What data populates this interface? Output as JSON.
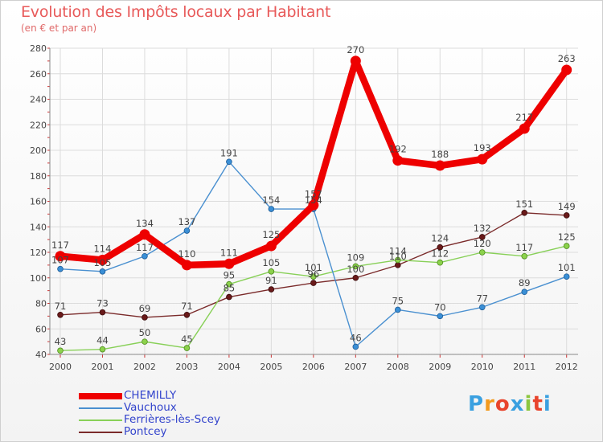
{
  "title": "Evolution des Impôts locaux par Habitant",
  "subtitle": "(en € et par an)",
  "logo": {
    "text": "Proxiti",
    "colors": [
      "#3aa0e0",
      "#f39a1e",
      "#e8442c",
      "#3aa0e0",
      "#8cc63f",
      "#e8442c",
      "#3aa0e0"
    ]
  },
  "chart_data": {
    "type": "line",
    "x": [
      "2000",
      "2001",
      "2002",
      "2003",
      "2004",
      "2005",
      "2006",
      "2007",
      "2008",
      "2009",
      "2010",
      "2011",
      "2012"
    ],
    "ylim": [
      40,
      280
    ],
    "yticks": [
      "40",
      "60",
      "80",
      "100",
      "120",
      "140",
      "160",
      "180",
      "200",
      "220",
      "240",
      "260",
      "280"
    ],
    "grid": true,
    "series": [
      {
        "name": "CHEMILLY",
        "color": "#ee0000",
        "values": [
          117,
          114,
          134,
          110,
          111,
          125,
          157,
          270,
          192,
          188,
          193,
          217,
          263
        ],
        "labels": [
          "117",
          "114",
          "134",
          "110",
          "111",
          "125",
          "157",
          "270",
          "192",
          "188",
          "193",
          "217",
          "263"
        ]
      },
      {
        "name": "Vauchoux",
        "color": "#4a90d0",
        "values": [
          107,
          105,
          117,
          137,
          191,
          154,
          154,
          46,
          75,
          70,
          77,
          89,
          101
        ],
        "labels": [
          "107",
          "105",
          "117",
          "137",
          "191",
          "154",
          "154",
          "46",
          "75",
          "70",
          "77",
          "89",
          "101"
        ]
      },
      {
        "name": "Ferrières-lès-Scey",
        "color": "#88d058",
        "values": [
          43,
          44,
          50,
          45,
          95,
          105,
          101,
          109,
          114,
          112,
          120,
          117,
          125
        ],
        "labels": [
          "43",
          "44",
          "50",
          "45",
          "95",
          "105",
          "101",
          "109",
          "114",
          "112",
          "120",
          "117",
          "125"
        ]
      },
      {
        "name": "Pontcey",
        "color": "#7a2a2a",
        "values": [
          71,
          73,
          69,
          71,
          85,
          91,
          96,
          100,
          110,
          124,
          132,
          151,
          149
        ],
        "labels": [
          "71",
          "73",
          "69",
          "71",
          "85",
          "91",
          "96",
          "100",
          "110",
          "124",
          "132",
          "151",
          "149"
        ]
      }
    ]
  }
}
